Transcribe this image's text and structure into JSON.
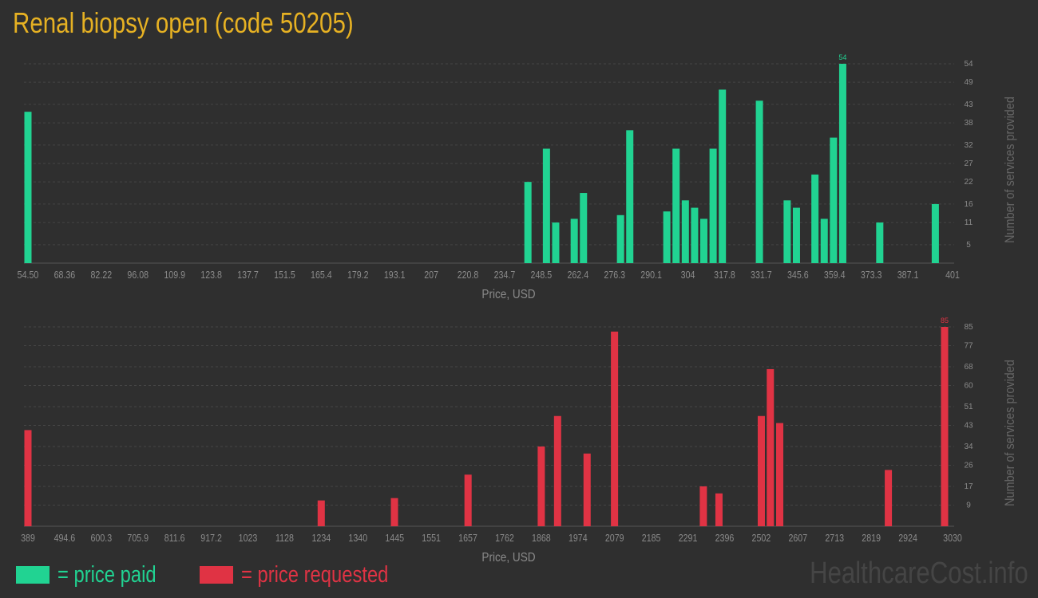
{
  "title": "Renal biopsy open (code 50205)",
  "colors": {
    "paid": "#21d392",
    "requested": "#e03344",
    "title": "#e6b123",
    "axis_text": "#8a8a8a",
    "grid": "#454545"
  },
  "legend": {
    "paid_label": "= price paid",
    "requested_label": "= price requested"
  },
  "watermark": "HealthcareCost.info",
  "chart_data": [
    {
      "type": "bar",
      "series_name": "price paid",
      "xlabel": "Price, USD",
      "ylabel": "Number of services provided",
      "xlim": [
        54.5,
        401
      ],
      "ylim": [
        0,
        54
      ],
      "x_ticks": [
        "54.50",
        "68.36",
        "82.22",
        "96.08",
        "109.9",
        "123.8",
        "137.7",
        "151.5",
        "165.4",
        "179.2",
        "193.1",
        "207",
        "220.8",
        "234.7",
        "248.5",
        "262.4",
        "276.3",
        "290.1",
        "304",
        "317.8",
        "331.7",
        "345.6",
        "359.4",
        "373.3",
        "387.1",
        "401"
      ],
      "y_ticks": [
        "5",
        "11",
        "16",
        "22",
        "27",
        "32",
        "38",
        "43",
        "49",
        "54"
      ],
      "max_label": "54",
      "grid": true,
      "bars": [
        {
          "x": 54.5,
          "y": 41
        },
        {
          "x": 243.5,
          "y": 22
        },
        {
          "x": 250.5,
          "y": 31
        },
        {
          "x": 254.0,
          "y": 11
        },
        {
          "x": 261.0,
          "y": 12
        },
        {
          "x": 264.5,
          "y": 19
        },
        {
          "x": 278.5,
          "y": 13
        },
        {
          "x": 282.0,
          "y": 36
        },
        {
          "x": 296.0,
          "y": 14
        },
        {
          "x": 299.5,
          "y": 31
        },
        {
          "x": 303.0,
          "y": 17
        },
        {
          "x": 306.5,
          "y": 15
        },
        {
          "x": 310.0,
          "y": 12
        },
        {
          "x": 313.5,
          "y": 31
        },
        {
          "x": 317.0,
          "y": 47
        },
        {
          "x": 331.0,
          "y": 44
        },
        {
          "x": 341.5,
          "y": 17
        },
        {
          "x": 345.0,
          "y": 15
        },
        {
          "x": 352.0,
          "y": 24
        },
        {
          "x": 355.5,
          "y": 12
        },
        {
          "x": 359.0,
          "y": 34
        },
        {
          "x": 362.5,
          "y": 54
        },
        {
          "x": 376.5,
          "y": 11
        },
        {
          "x": 397.5,
          "y": 16
        }
      ]
    },
    {
      "type": "bar",
      "series_name": "price requested",
      "xlabel": "Price, USD",
      "ylabel": "Number of services provided",
      "xlim": [
        389,
        3030
      ],
      "ylim": [
        0,
        85
      ],
      "x_ticks": [
        "389",
        "494.6",
        "600.3",
        "705.9",
        "811.6",
        "917.2",
        "1023",
        "1128",
        "1234",
        "1340",
        "1445",
        "1551",
        "1657",
        "1762",
        "1868",
        "1974",
        "2079",
        "2185",
        "2291",
        "2396",
        "2502",
        "2607",
        "2713",
        "2819",
        "2924",
        "3030"
      ],
      "y_ticks": [
        "9",
        "17",
        "26",
        "34",
        "43",
        "51",
        "60",
        "68",
        "77",
        "85"
      ],
      "max_label": "85",
      "grid": true,
      "bars": [
        {
          "x": 389,
          "y": 41
        },
        {
          "x": 1234,
          "y": 11
        },
        {
          "x": 1445,
          "y": 12
        },
        {
          "x": 1657,
          "y": 22
        },
        {
          "x": 1868,
          "y": 34
        },
        {
          "x": 1915,
          "y": 47
        },
        {
          "x": 2000,
          "y": 31
        },
        {
          "x": 2079,
          "y": 83
        },
        {
          "x": 2335,
          "y": 17
        },
        {
          "x": 2380,
          "y": 14
        },
        {
          "x": 2502,
          "y": 47
        },
        {
          "x": 2528,
          "y": 67
        },
        {
          "x": 2555,
          "y": 44
        },
        {
          "x": 2868,
          "y": 24
        },
        {
          "x": 3030,
          "y": 85
        }
      ]
    }
  ]
}
